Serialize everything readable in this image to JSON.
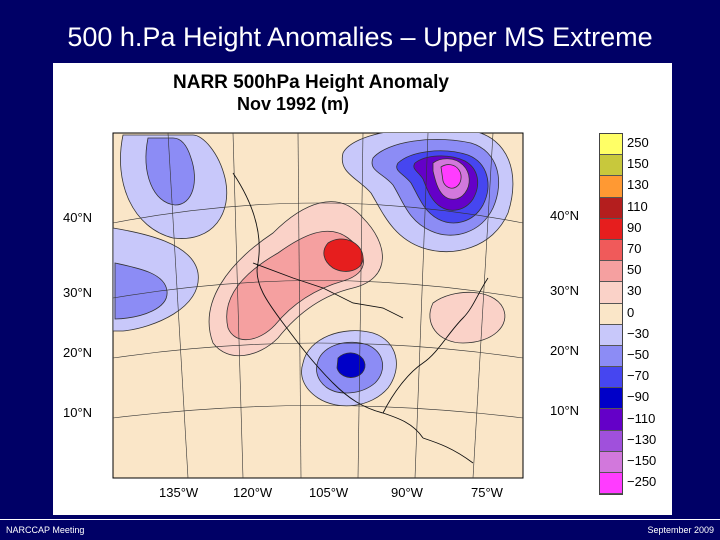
{
  "slide": {
    "title": "500 h.Pa Height Anomalies – Upper MS Extreme"
  },
  "map": {
    "title_line1": "NARR 500hPa Height Anomaly",
    "title_line2": "Nov 1992 (m)",
    "lat_labels_left": [
      "40°N",
      "30°N",
      "20°N",
      "10°N"
    ],
    "lat_labels_right": [
      "40°N",
      "30°N",
      "20°N",
      "10°N"
    ],
    "lon_labels": [
      "135°W",
      "120°W",
      "105°W",
      "90°W",
      "75°W"
    ]
  },
  "legend": {
    "items": [
      {
        "label": "250",
        "color": "#ffff66"
      },
      {
        "label": "150",
        "color": "#c8c83c"
      },
      {
        "label": "130",
        "color": "#ff9933"
      },
      {
        "label": "110",
        "color": "#b41e1e"
      },
      {
        "label": "90",
        "color": "#e61e1e"
      },
      {
        "label": "70",
        "color": "#f05a5a"
      },
      {
        "label": "50",
        "color": "#f5a0a0"
      },
      {
        "label": "30",
        "color": "#fad2c8"
      },
      {
        "label": "0",
        "color": "#fae6c8"
      },
      {
        "label": "−30",
        "color": "#c8c8fa"
      },
      {
        "label": "−50",
        "color": "#8c8cf5"
      },
      {
        "label": "−70",
        "color": "#4646f0"
      },
      {
        "label": "−90",
        "color": "#0000c8"
      },
      {
        "label": "−110",
        "color": "#6400c8"
      },
      {
        "label": "−130",
        "color": "#a050dc"
      },
      {
        "label": "−150",
        "color": "#d278dc"
      },
      {
        "label": "−250",
        "color": "#ff3cff"
      }
    ]
  },
  "footer": {
    "left": "NARCCAP Meeting",
    "right": "September 2009"
  }
}
